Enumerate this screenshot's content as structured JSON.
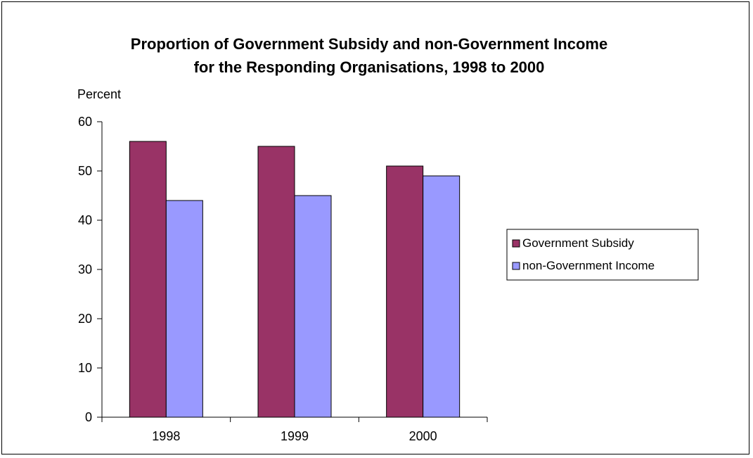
{
  "chart_data": {
    "type": "bar",
    "title": "Proportion of Government Subsidy and non-Government Income",
    "subtitle": "for the Responding Organisations, 1998 to 2000",
    "xlabel": "",
    "ylabel": "Percent",
    "categories": [
      "1998",
      "1999",
      "2000"
    ],
    "series": [
      {
        "name": "Government Subsidy",
        "values": [
          56,
          55,
          51
        ],
        "color": "#993366"
      },
      {
        "name": "non-Government Income",
        "values": [
          44,
          45,
          49
        ],
        "color": "#9999ff"
      }
    ],
    "ylim": [
      0,
      60
    ],
    "yticks": [
      "0",
      "10",
      "20",
      "30",
      "40",
      "50",
      "60"
    ],
    "grid": false,
    "legend_position": "right"
  }
}
